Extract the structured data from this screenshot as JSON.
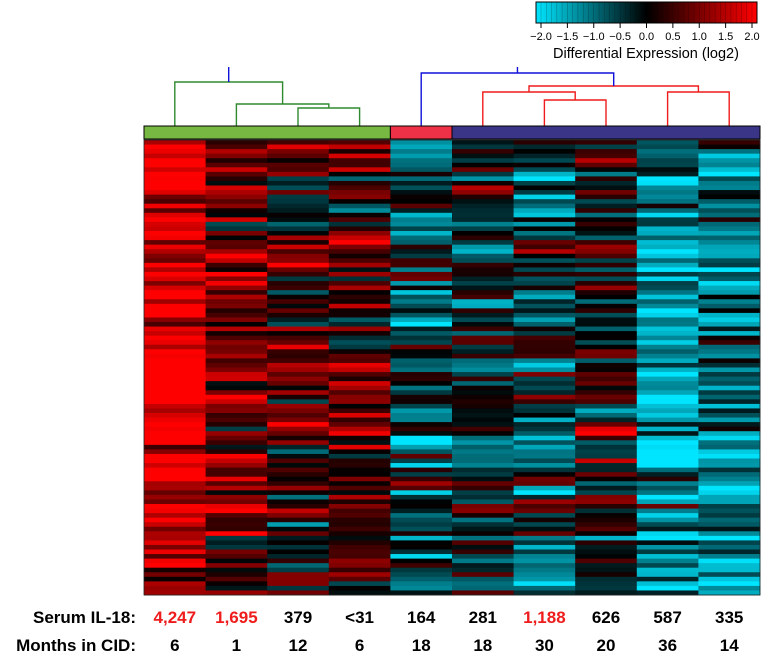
{
  "chart_data": {
    "type": "heatmap",
    "colorbar": {
      "title": "Differential Expression (log2)",
      "ticks": [
        "−2.0",
        "−1.5",
        "−1.0",
        "−0.5",
        "0.0",
        "0.5",
        "1.0",
        "1.5",
        "2.0"
      ],
      "range": [
        -2.0,
        2.0
      ],
      "low_color": "#00e5ff",
      "mid_color": "#000000",
      "high_color": "#ff0000"
    },
    "columns": [
      {
        "group": "green",
        "serum_il18": "4,247",
        "highlight": true,
        "months": "6"
      },
      {
        "group": "green",
        "serum_il18": "1,695",
        "highlight": true,
        "months": "1"
      },
      {
        "group": "green",
        "serum_il18": "379",
        "highlight": false,
        "months": "12"
      },
      {
        "group": "green",
        "serum_il18": "<31",
        "highlight": false,
        "months": "6"
      },
      {
        "group": "red",
        "serum_il18": "164",
        "highlight": false,
        "months": "18"
      },
      {
        "group": "blue",
        "serum_il18": "281",
        "highlight": false,
        "months": "18"
      },
      {
        "group": "blue",
        "serum_il18": "1,188",
        "highlight": true,
        "months": "30"
      },
      {
        "group": "blue",
        "serum_il18": "626",
        "highlight": false,
        "months": "20"
      },
      {
        "group": "blue",
        "serum_il18": "587",
        "highlight": false,
        "months": "36"
      },
      {
        "group": "blue",
        "serum_il18": "335",
        "highlight": false,
        "months": "14"
      }
    ],
    "column_mean_log2": [
      1.8,
      0.8,
      0.4,
      0.5,
      -0.6,
      -0.5,
      -0.4,
      0.0,
      -1.2,
      -0.9
    ],
    "row_count": 100,
    "row_labels": {
      "serum": "Serum IL-18:",
      "months": "Months in CID:"
    }
  },
  "colors": {
    "green_cluster": "#77b843",
    "red_cluster": "#ee3146",
    "blue_cluster": "#3a3586",
    "green_tree": "#2f8a2f",
    "red_tree": "#ee1c1c",
    "blue_tree": "#1010d8",
    "highlight_text": "#ee1c1c",
    "text": "#000000"
  }
}
